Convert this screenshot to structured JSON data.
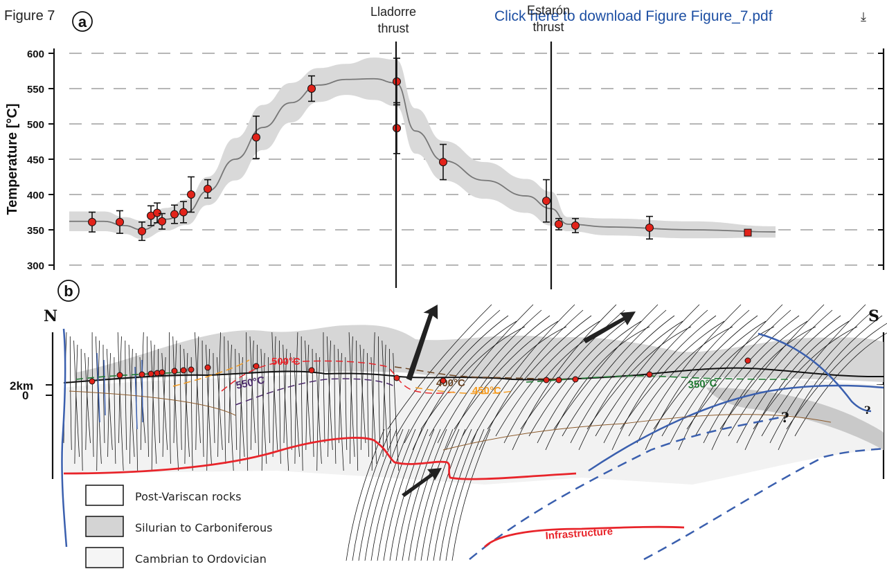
{
  "header": {
    "figure_title": "Figure 7",
    "download_link": "Click here to download Figure Figure_7.pdf",
    "download_icon": "download-icon"
  },
  "panels": {
    "a_label": "a",
    "b_label": "b"
  },
  "thrusts": [
    {
      "line1": "Lladorre",
      "line2": "thrust"
    },
    {
      "line1": "Estarón",
      "line2": "thrust"
    }
  ],
  "section": {
    "north": "N",
    "south": "S",
    "depth_ticks": [
      "2km",
      "0"
    ],
    "isotherms": [
      "500°C",
      "400°C",
      "550°C",
      "450°C",
      "350°C"
    ],
    "question_marks": [
      "?",
      "?"
    ],
    "infrastructure_label": "Infrastructure",
    "colors": {
      "red": "#e8242a",
      "blue": "#3a5fae",
      "brown": "#6b4423",
      "purple": "#4b2a6b",
      "orange": "#f59b1f",
      "green": "#1f7a32"
    }
  },
  "legend": [
    {
      "label": "Post-Variscan rocks",
      "fill": "#ffffff"
    },
    {
      "label": "Silurian to Carboniferous",
      "fill": "#d4d4d4"
    },
    {
      "label": "Cambrian to Ordovician",
      "fill": "#f5f5f5"
    }
  ],
  "chart_data": {
    "type": "scatter",
    "title": "",
    "xlabel": "",
    "ylabel": "Temperature [°C]",
    "ylim": [
      300,
      600
    ],
    "yticks": [
      300,
      350,
      400,
      450,
      500,
      550,
      600
    ],
    "grid": "horizontal dashed",
    "point_color": "#e2231a",
    "band_color": "#d9d9d9",
    "points": [
      {
        "y": 361,
        "err": 14
      },
      {
        "y": 361,
        "err": 16
      },
      {
        "y": 348,
        "err": 13
      },
      {
        "y": 370,
        "err": 14
      },
      {
        "y": 374,
        "err": 14
      },
      {
        "y": 362,
        "err": 11
      },
      {
        "y": 372,
        "err": 13
      },
      {
        "y": 375,
        "err": 15
      },
      {
        "y": 400,
        "err": 25
      },
      {
        "y": 408,
        "err": 13
      },
      {
        "y": 481,
        "err": 30
      },
      {
        "y": 550,
        "err": 18
      },
      {
        "y": 560,
        "err": 33
      },
      {
        "y": 494,
        "err": 36
      },
      {
        "y": 446,
        "err": 25
      },
      {
        "y": 391,
        "err": 30
      },
      {
        "y": 358,
        "err": 8
      },
      {
        "y": 356,
        "err": 10
      },
      {
        "y": 353,
        "err": 16
      },
      {
        "y": 346,
        "err": 4
      }
    ]
  }
}
